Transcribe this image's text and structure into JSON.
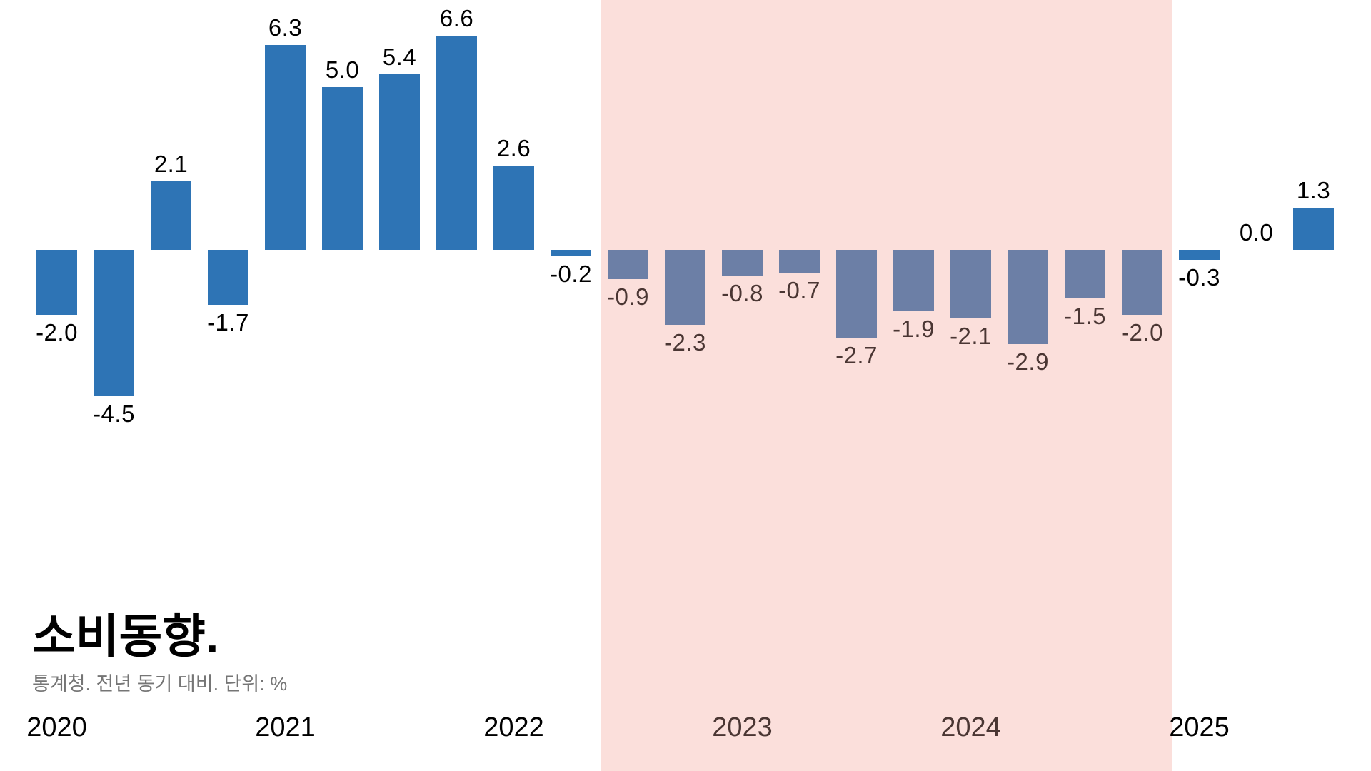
{
  "title": "소비동향.",
  "subtitle": "통계청. 전년 동기 대비. 단위: %",
  "colors": {
    "bar": "#2e74b5",
    "bar_highlighted": "#6c7fa6",
    "highlight_band": "#fbdfdb",
    "label": "#000000",
    "label_highlighted": "#4a3633",
    "subtitle_text": "#757575",
    "background": "#ffffff"
  },
  "chart_data": {
    "type": "bar",
    "title": "소비동향.",
    "source_note": "통계청. 전년 동기 대비. 단위: %",
    "unit": "%",
    "x": [
      "2020Q1",
      "2020Q2",
      "2020Q3",
      "2020Q4",
      "2021Q1",
      "2021Q2",
      "2021Q3",
      "2021Q4",
      "2022Q1",
      "2022Q2",
      "2022Q3",
      "2022Q4",
      "2023Q1",
      "2023Q2",
      "2023Q3",
      "2023Q4",
      "2024Q1",
      "2024Q2",
      "2024Q3",
      "2024Q4",
      "2025Q1",
      "2025Q2",
      "2025Q3"
    ],
    "values": [
      -2.0,
      -4.5,
      2.1,
      -1.7,
      6.3,
      5.0,
      5.4,
      6.6,
      2.6,
      -0.2,
      -0.9,
      -2.3,
      -0.8,
      -0.7,
      -2.7,
      -1.9,
      -2.1,
      -2.9,
      -1.5,
      -2.0,
      -0.3,
      0.0,
      1.3
    ],
    "bar_labels": [
      "-2.0",
      "-4.5",
      "2.1",
      "-1.7",
      "6.3",
      "5.0",
      "5.4",
      "6.6",
      "2.6",
      "-0.2",
      "-0.9",
      "-2.3",
      "-0.8",
      "-0.7",
      "-2.7",
      "-1.9",
      "-2.1",
      "-2.9",
      "-1.5",
      "-2.0",
      "-0.3",
      "0.0",
      "1.3"
    ],
    "year_ticks": [
      "2020",
      "2021",
      "2022",
      "2023",
      "2024",
      "2025"
    ],
    "highlight_start_index": 10,
    "highlight_end_index": 19,
    "baseline": 0,
    "ylim_implied": [
      -5,
      7
    ],
    "grid": false,
    "legend": false
  }
}
